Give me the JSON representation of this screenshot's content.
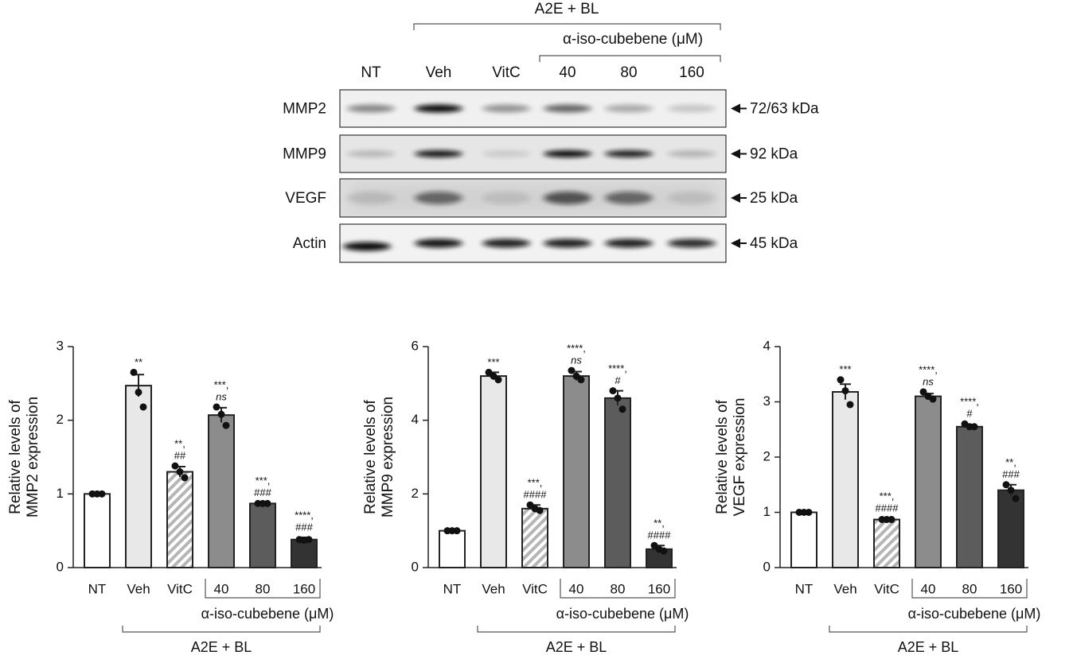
{
  "blot": {
    "group_label": "A2E + BL",
    "treatment_label": "α-iso-cubebene (μM)",
    "lanes": [
      "NT",
      "Veh",
      "VitC",
      "40",
      "80",
      "160"
    ],
    "rows": [
      {
        "name": "MMP2",
        "size": "72/63 kDa"
      },
      {
        "name": "MMP9",
        "size": "92 kDa"
      },
      {
        "name": "VEGF",
        "size": "25 kDa"
      },
      {
        "name": "Actin",
        "size": "45 kDa"
      }
    ]
  },
  "chart_data": [
    {
      "type": "bar",
      "ylabel": [
        "Relative levels of",
        "MMP2 expression"
      ],
      "categories": [
        "NT",
        "Veh",
        "VitC",
        "40",
        "80",
        "160"
      ],
      "values": [
        1,
        2.47,
        1.3,
        2.07,
        0.87,
        0.38
      ],
      "errors": [
        0.01,
        0.15,
        0.07,
        0.1,
        0.01,
        0.03
      ],
      "points": [
        [
          1,
          1,
          1
        ],
        [
          2.65,
          2.38,
          2.18
        ],
        [
          1.38,
          1.3,
          1.22
        ],
        [
          2.18,
          2.08,
          1.93
        ],
        [
          0.87,
          0.87,
          0.87
        ],
        [
          0.38,
          0.37,
          0.38
        ]
      ],
      "annotations": [
        [],
        [
          "**"
        ],
        [
          "**,",
          "##"
        ],
        [
          "***,",
          "ns"
        ],
        [
          "***,",
          "###"
        ],
        [
          "****,",
          "###"
        ]
      ],
      "colors": [
        "#ffffff",
        "#e8e8e8",
        "#ffffff",
        "#8c8c8c",
        "#5c5c5c",
        "#333333"
      ],
      "hatched": [
        false,
        false,
        true,
        false,
        false,
        false
      ],
      "ylim": [
        0,
        3
      ],
      "yticks": [
        0,
        1,
        2,
        3
      ],
      "bracket_label": "α-iso-cubebene (μM)",
      "group_label": "A2E + BL"
    },
    {
      "type": "bar",
      "ylabel": [
        "Relative levels of",
        "MMP9 expression"
      ],
      "categories": [
        "NT",
        "Veh",
        "VitC",
        "40",
        "80",
        "160"
      ],
      "values": [
        1,
        5.2,
        1.6,
        5.2,
        4.6,
        0.5
      ],
      "errors": [
        0.02,
        0.1,
        0.1,
        0.12,
        0.2,
        0.1
      ],
      "points": [
        [
          1,
          1,
          1
        ],
        [
          5.3,
          5.2,
          5.1
        ],
        [
          1.7,
          1.6,
          1.55
        ],
        [
          5.35,
          5.2,
          5.1
        ],
        [
          4.8,
          4.6,
          4.3
        ],
        [
          0.6,
          0.5,
          0.45
        ]
      ],
      "annotations": [
        [],
        [
          "***"
        ],
        [
          "***,",
          "####"
        ],
        [
          "****,",
          "ns"
        ],
        [
          "****,",
          "#"
        ],
        [
          "**,",
          "####"
        ]
      ],
      "colors": [
        "#ffffff",
        "#e8e8e8",
        "#ffffff",
        "#8c8c8c",
        "#5c5c5c",
        "#333333"
      ],
      "hatched": [
        false,
        false,
        true,
        false,
        false,
        false
      ],
      "ylim": [
        0,
        6
      ],
      "yticks": [
        0,
        2,
        4,
        6
      ],
      "bracket_label": "α-iso-cubebene (μM)",
      "group_label": "A2E + BL"
    },
    {
      "type": "bar",
      "ylabel": [
        "Relative levels of",
        "VEGF expression"
      ],
      "categories": [
        "NT",
        "Veh",
        "VitC",
        "40",
        "80",
        "160"
      ],
      "values": [
        1,
        3.18,
        0.87,
        3.1,
        2.55,
        1.4
      ],
      "errors": [
        0.01,
        0.14,
        0.02,
        0.05,
        0.04,
        0.1
      ],
      "points": [
        [
          1,
          1,
          1
        ],
        [
          3.4,
          3.2,
          2.95
        ],
        [
          0.87,
          0.87,
          0.87
        ],
        [
          3.18,
          3.1,
          3.05
        ],
        [
          2.6,
          2.55,
          2.55
        ],
        [
          1.5,
          1.4,
          1.25
        ]
      ],
      "annotations": [
        [],
        [
          "***"
        ],
        [
          "***,",
          "####"
        ],
        [
          "****,",
          "ns"
        ],
        [
          "****,",
          "#"
        ],
        [
          "**,",
          "###"
        ]
      ],
      "colors": [
        "#ffffff",
        "#e8e8e8",
        "#ffffff",
        "#8c8c8c",
        "#5c5c5c",
        "#333333"
      ],
      "hatched": [
        false,
        false,
        true,
        false,
        false,
        false
      ],
      "ylim": [
        0,
        4
      ],
      "yticks": [
        0,
        1,
        2,
        3,
        4
      ],
      "bracket_label": "α-iso-cubebene (μM)",
      "group_label": "A2E + BL"
    }
  ]
}
